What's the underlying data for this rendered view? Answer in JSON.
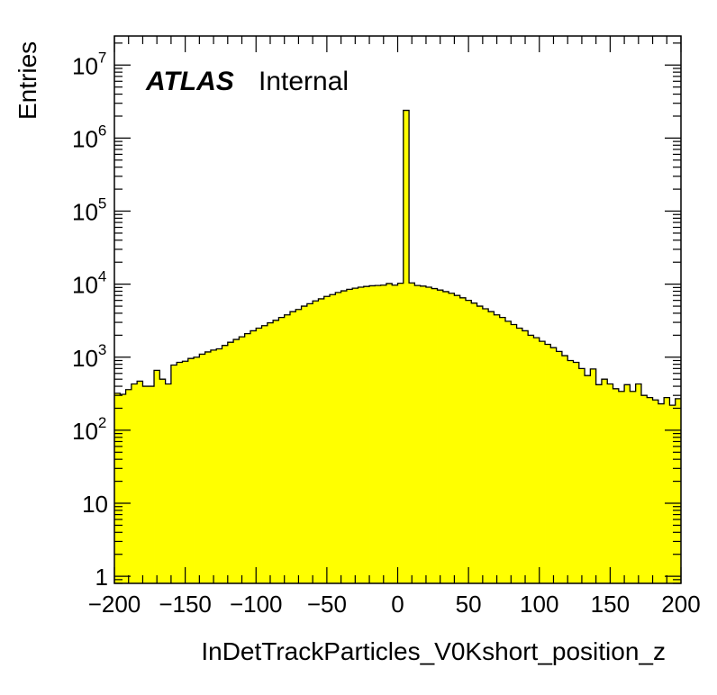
{
  "chart_data": {
    "type": "histogram",
    "xlabel": "InDetTrackParticles_V0Kshort_position_z",
    "ylabel": "Entries",
    "label_bold": "ATLAS",
    "label_rest": "Internal",
    "xlim": [
      -200,
      200
    ],
    "ylim": [
      0.8,
      25000000
    ],
    "log_y": true,
    "fill_color": "#ffff00",
    "line_color": "#000000",
    "x_ticks": [
      {
        "value": -200,
        "label": "−200"
      },
      {
        "value": -150,
        "label": "−150"
      },
      {
        "value": -100,
        "label": "−100"
      },
      {
        "value": -50,
        "label": "−50"
      },
      {
        "value": 0,
        "label": "0"
      },
      {
        "value": 50,
        "label": "50"
      },
      {
        "value": 100,
        "label": "100"
      },
      {
        "value": 150,
        "label": "150"
      },
      {
        "value": 200,
        "label": "200"
      }
    ],
    "y_ticks": [
      {
        "value": 1,
        "base": "1",
        "exp": ""
      },
      {
        "value": 10,
        "base": "10",
        "exp": ""
      },
      {
        "value": 100,
        "base": "10",
        "exp": "2"
      },
      {
        "value": 1000,
        "base": "10",
        "exp": "3"
      },
      {
        "value": 10000,
        "base": "10",
        "exp": "4"
      },
      {
        "value": 100000,
        "base": "10",
        "exp": "5"
      },
      {
        "value": 1000000,
        "base": "10",
        "exp": "6"
      },
      {
        "value": 10000000,
        "base": "10",
        "exp": "7"
      }
    ],
    "bin_edges": {
      "start": -200,
      "end": 200,
      "width": 4
    },
    "values": [
      320,
      310,
      360,
      430,
      470,
      400,
      400,
      660,
      500,
      430,
      780,
      850,
      880,
      960,
      1000,
      1100,
      1180,
      1250,
      1300,
      1450,
      1600,
      1750,
      1900,
      2100,
      2300,
      2500,
      2700,
      2950,
      3200,
      3500,
      3800,
      4200,
      4500,
      5000,
      5400,
      5900,
      6300,
      6800,
      7200,
      7700,
      8100,
      8500,
      8800,
      9100,
      9300,
      9500,
      9600,
      9700,
      10200,
      9700,
      10300,
      2400000,
      10400,
      9600,
      9400,
      9100,
      8700,
      8300,
      7900,
      7500,
      7000,
      6500,
      6000,
      5500,
      5000,
      4600,
      4200,
      3800,
      3500,
      3100,
      2800,
      2500,
      2300,
      2000,
      1850,
      1650,
      1500,
      1350,
      1200,
      1050,
      900,
      850,
      700,
      560,
      690,
      420,
      500,
      430,
      370,
      340,
      420,
      340,
      430,
      300,
      280,
      260,
      230,
      280,
      220,
      270
    ]
  }
}
